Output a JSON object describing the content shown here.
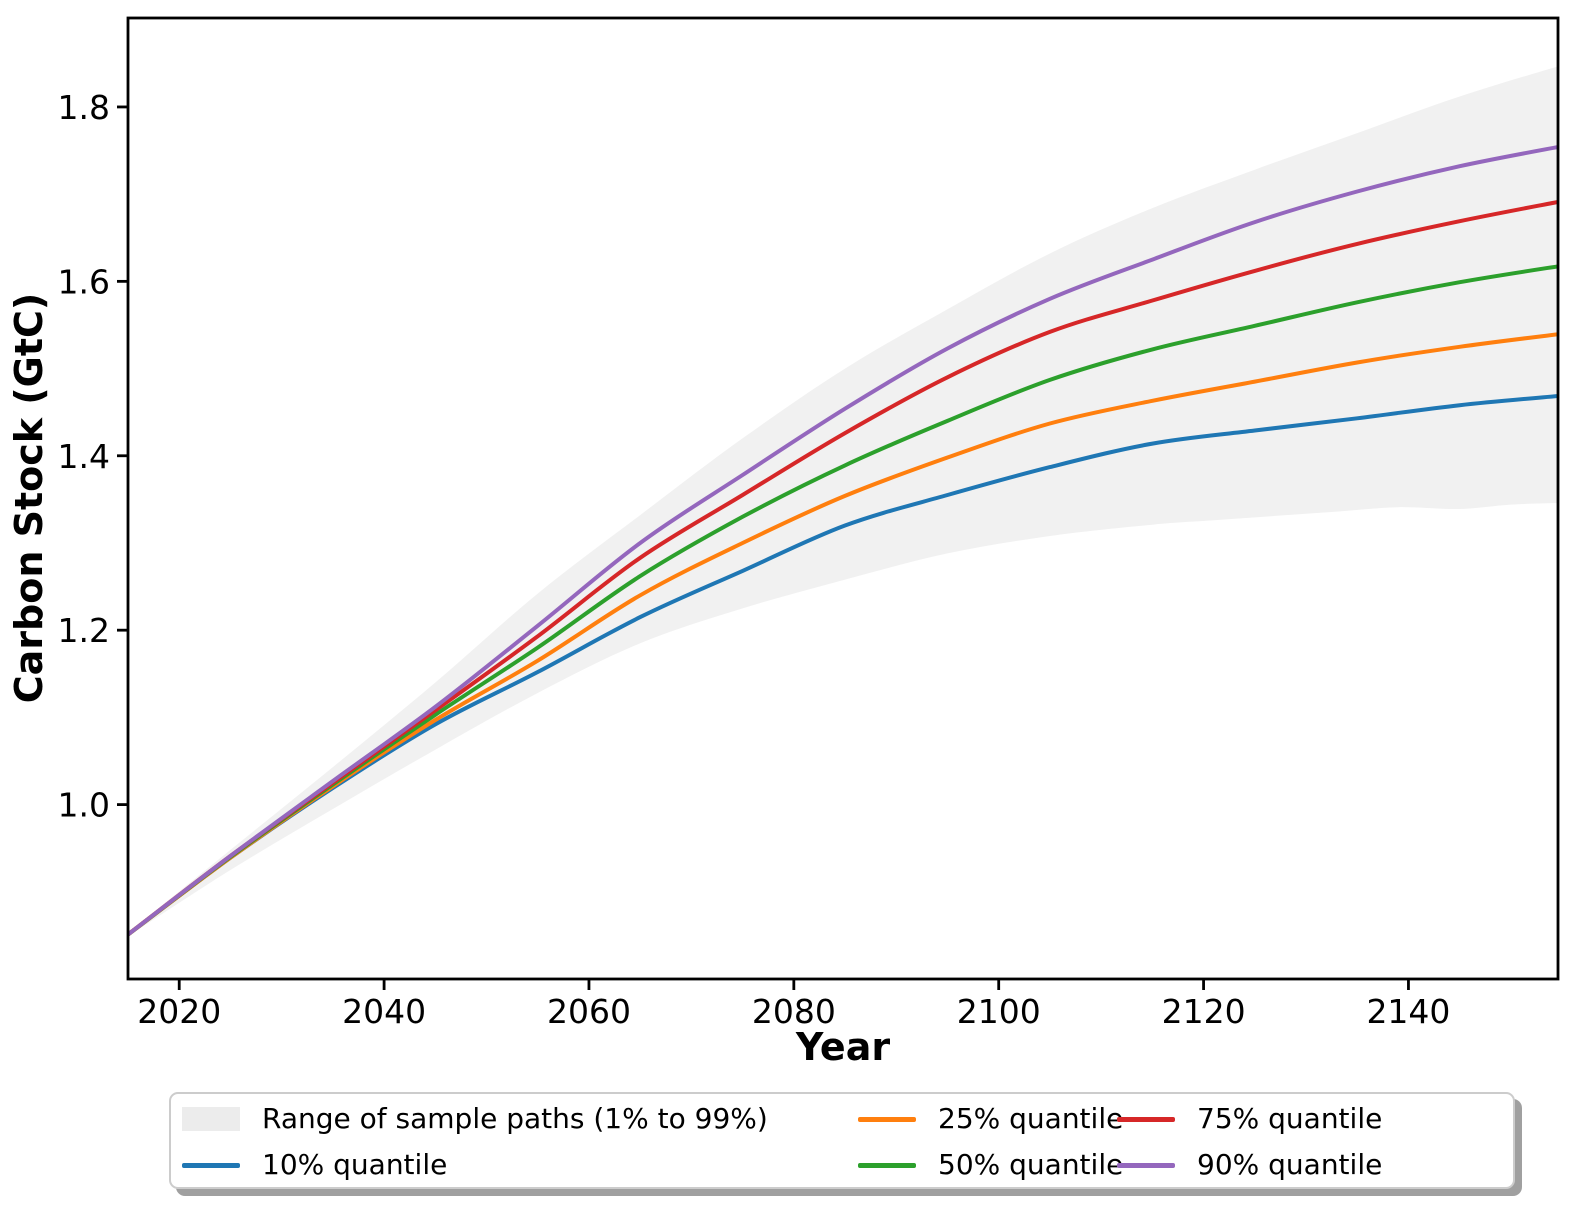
{
  "chart_data": {
    "type": "line",
    "title": "",
    "xlabel": "Year",
    "ylabel": "Carbon Stock (GtC)",
    "xlim": [
      2015,
      2154.6
    ],
    "ylim": [
      0.8,
      1.902
    ],
    "x_ticks": [
      2020,
      2040,
      2060,
      2080,
      2100,
      2120,
      2140
    ],
    "y_ticks": [
      1.0,
      1.2,
      1.4,
      1.6,
      1.8
    ],
    "grid": false,
    "legend_position": "bottom, outside axes, 3 columns",
    "band": {
      "name": "Range of sample paths (1% to 99%)",
      "color": "#f1f1f1",
      "top": [
        [
          2015,
          0.853
        ],
        [
          2025,
          0.948
        ],
        [
          2035,
          1.043
        ],
        [
          2045,
          1.14
        ],
        [
          2055,
          1.242
        ],
        [
          2065,
          1.332
        ],
        [
          2075,
          1.42
        ],
        [
          2085,
          1.5
        ],
        [
          2095,
          1.568
        ],
        [
          2105,
          1.632
        ],
        [
          2115,
          1.684
        ],
        [
          2125,
          1.728
        ],
        [
          2135,
          1.77
        ],
        [
          2145,
          1.812
        ],
        [
          2155,
          1.848
        ]
      ],
      "bottom": [
        [
          2015,
          0.849
        ],
        [
          2025,
          0.925
        ],
        [
          2035,
          0.995
        ],
        [
          2045,
          1.063
        ],
        [
          2055,
          1.128
        ],
        [
          2065,
          1.185
        ],
        [
          2075,
          1.225
        ],
        [
          2085,
          1.258
        ],
        [
          2095,
          1.288
        ],
        [
          2105,
          1.308
        ],
        [
          2115,
          1.321
        ],
        [
          2121,
          1.326
        ],
        [
          2127,
          1.331
        ],
        [
          2133,
          1.336
        ],
        [
          2139,
          1.341
        ],
        [
          2145,
          1.339
        ],
        [
          2150,
          1.344
        ],
        [
          2155,
          1.346
        ]
      ]
    },
    "series": [
      {
        "key": "q10",
        "name": "10% quantile",
        "color": "#1f77b4",
        "points": [
          [
            2015,
            0.851
          ],
          [
            2025,
            0.939
          ],
          [
            2035,
            1.019
          ],
          [
            2045,
            1.092
          ],
          [
            2055,
            1.152
          ],
          [
            2065,
            1.215
          ],
          [
            2075,
            1.268
          ],
          [
            2085,
            1.32
          ],
          [
            2095,
            1.355
          ],
          [
            2105,
            1.387
          ],
          [
            2115,
            1.414
          ],
          [
            2125,
            1.429
          ],
          [
            2135,
            1.443
          ],
          [
            2145,
            1.458
          ],
          [
            2155,
            1.469
          ]
        ]
      },
      {
        "key": "q25",
        "name": "25% quantile",
        "color": "#ff7f0e",
        "points": [
          [
            2015,
            0.851
          ],
          [
            2025,
            0.939
          ],
          [
            2035,
            1.021
          ],
          [
            2045,
            1.097
          ],
          [
            2055,
            1.165
          ],
          [
            2065,
            1.24
          ],
          [
            2075,
            1.3
          ],
          [
            2085,
            1.354
          ],
          [
            2095,
            1.398
          ],
          [
            2105,
            1.437
          ],
          [
            2115,
            1.463
          ],
          [
            2125,
            1.485
          ],
          [
            2135,
            1.507
          ],
          [
            2145,
            1.525
          ],
          [
            2155,
            1.54
          ]
        ]
      },
      {
        "key": "q50",
        "name": "50% quantile",
        "color": "#2ca02c",
        "points": [
          [
            2015,
            0.851
          ],
          [
            2025,
            0.94
          ],
          [
            2035,
            1.023
          ],
          [
            2045,
            1.103
          ],
          [
            2055,
            1.18
          ],
          [
            2065,
            1.262
          ],
          [
            2075,
            1.33
          ],
          [
            2085,
            1.389
          ],
          [
            2095,
            1.44
          ],
          [
            2105,
            1.487
          ],
          [
            2115,
            1.522
          ],
          [
            2125,
            1.549
          ],
          [
            2135,
            1.576
          ],
          [
            2145,
            1.599
          ],
          [
            2155,
            1.618
          ]
        ]
      },
      {
        "key": "q75",
        "name": "75% quantile",
        "color": "#d62728",
        "points": [
          [
            2015,
            0.851
          ],
          [
            2025,
            0.941
          ],
          [
            2035,
            1.025
          ],
          [
            2045,
            1.108
          ],
          [
            2055,
            1.193
          ],
          [
            2065,
            1.283
          ],
          [
            2075,
            1.355
          ],
          [
            2085,
            1.426
          ],
          [
            2095,
            1.49
          ],
          [
            2105,
            1.542
          ],
          [
            2115,
            1.578
          ],
          [
            2125,
            1.612
          ],
          [
            2135,
            1.643
          ],
          [
            2145,
            1.669
          ],
          [
            2155,
            1.692
          ]
        ]
      },
      {
        "key": "q90",
        "name": "90% quantile",
        "color": "#9467bd",
        "points": [
          [
            2015,
            0.851
          ],
          [
            2025,
            0.941
          ],
          [
            2035,
            1.027
          ],
          [
            2045,
            1.112
          ],
          [
            2055,
            1.205
          ],
          [
            2065,
            1.3
          ],
          [
            2075,
            1.378
          ],
          [
            2085,
            1.454
          ],
          [
            2095,
            1.523
          ],
          [
            2105,
            1.58
          ],
          [
            2115,
            1.625
          ],
          [
            2125,
            1.668
          ],
          [
            2135,
            1.703
          ],
          [
            2145,
            1.732
          ],
          [
            2155,
            1.755
          ]
        ]
      }
    ],
    "legend": [
      {
        "label": "Range of sample paths (1% to 99%)",
        "type": "patch",
        "color": "#ececec",
        "key": "band"
      },
      {
        "label": "10% quantile",
        "type": "line",
        "color": "#1f77b4",
        "key": "q10"
      },
      {
        "label": "25% quantile",
        "type": "line",
        "color": "#ff7f0e",
        "key": "q25"
      },
      {
        "label": "50% quantile",
        "type": "line",
        "color": "#2ca02c",
        "key": "q50"
      },
      {
        "label": "75% quantile",
        "type": "line",
        "color": "#d62728",
        "key": "q75"
      },
      {
        "label": "90% quantile",
        "type": "line",
        "color": "#9467bd",
        "key": "q90"
      }
    ]
  }
}
